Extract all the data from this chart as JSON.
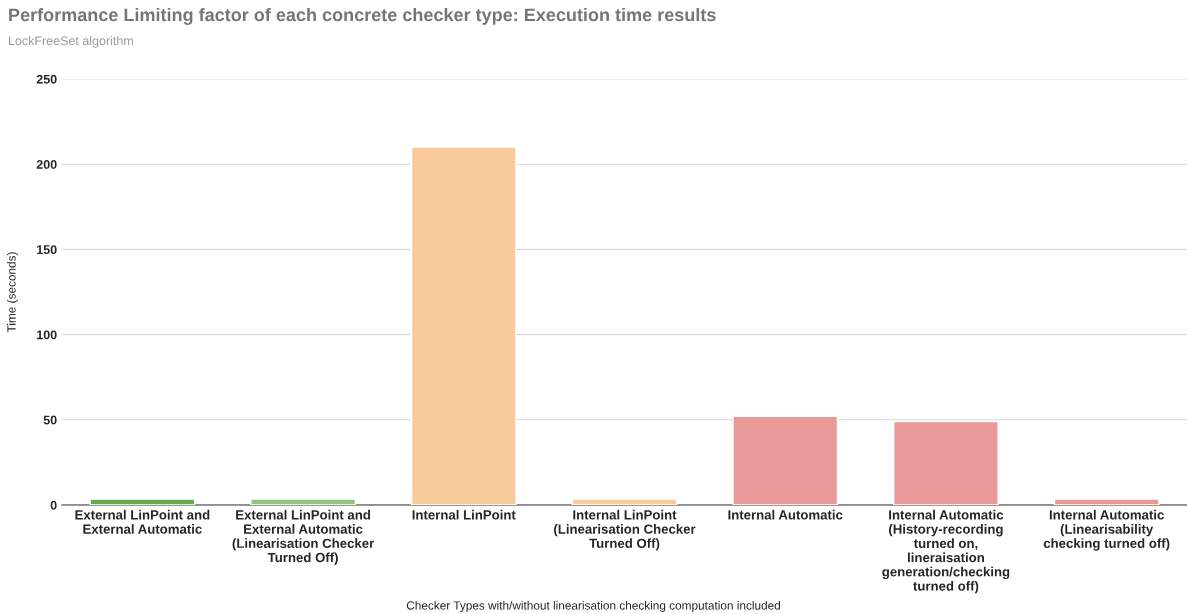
{
  "chart_data": {
    "type": "bar",
    "title": "Performance Limiting factor of each concrete checker type: Execution time results",
    "subtitle": "LockFreeSet algorithm",
    "xlabel": "Checker Types with/without linearisation checking computation included",
    "ylabel": "Time (seconds)",
    "categories": [
      "External LinPoint and External Automatic",
      "External LinPoint and External Automatic (Linearisation Checker Turned Off)",
      "Internal LinPoint",
      "Internal LinPoint (Linearisation Checker Turned Off)",
      "Internal Automatic",
      "Internal Automatic (History-recording turned on, lineraisation generation/checking turned off)",
      "Internal Automatic (Linearisability checking turned off)"
    ],
    "values": [
      3.5,
      3.5,
      210,
      3.5,
      52,
      49,
      3.5
    ],
    "colors": [
      "#6aa84f",
      "#93c47d",
      "#f9cb9c",
      "#f9cb9c",
      "#ea9999",
      "#ea9999",
      "#ea9999"
    ],
    "ylim": [
      0,
      250
    ],
    "yticks": [
      0,
      50,
      100,
      150,
      200,
      250
    ],
    "grid": "y",
    "legend": false
  }
}
